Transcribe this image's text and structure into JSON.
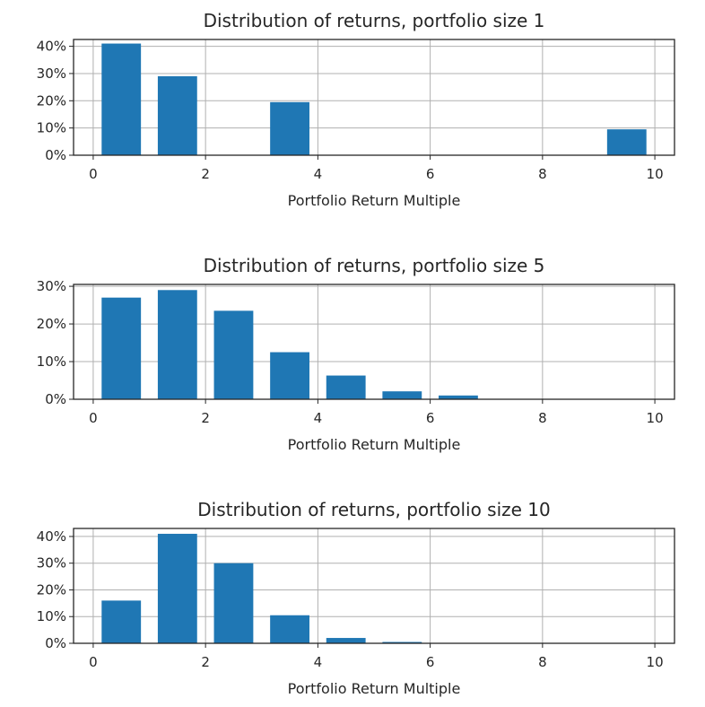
{
  "chart_data": [
    {
      "type": "bar",
      "title": "Distribution of returns, portfolio size 1",
      "xlabel": "Portfolio Return Multiple",
      "ylabel": "",
      "xlim": [
        -0.35,
        10.35
      ],
      "ylim": [
        0,
        42.5
      ],
      "xticks": [
        0,
        2,
        4,
        6,
        8,
        10
      ],
      "yticks": [
        0,
        10,
        20,
        30,
        40
      ],
      "ytick_labels": [
        "0%",
        "10%",
        "20%",
        "30%",
        "40%"
      ],
      "grid": true,
      "bar_color": "#1f77b4",
      "bars": [
        {
          "x0": 0.15,
          "x1": 0.85,
          "value": 41
        },
        {
          "x0": 1.15,
          "x1": 1.85,
          "value": 29
        },
        {
          "x0": 3.15,
          "x1": 3.85,
          "value": 19.5
        },
        {
          "x0": 9.15,
          "x1": 9.85,
          "value": 9.5
        }
      ]
    },
    {
      "type": "bar",
      "title": "Distribution of returns, portfolio size 5",
      "xlabel": "Portfolio Return Multiple",
      "ylabel": "",
      "xlim": [
        -0.35,
        10.35
      ],
      "ylim": [
        0,
        30.5
      ],
      "xticks": [
        0,
        2,
        4,
        6,
        8,
        10
      ],
      "yticks": [
        0,
        10,
        20,
        30
      ],
      "ytick_labels": [
        "0%",
        "10%",
        "20%",
        "30%"
      ],
      "grid": true,
      "bar_color": "#1f77b4",
      "bars": [
        {
          "x0": 0.15,
          "x1": 0.85,
          "value": 27
        },
        {
          "x0": 1.15,
          "x1": 1.85,
          "value": 29
        },
        {
          "x0": 2.15,
          "x1": 2.85,
          "value": 23.5
        },
        {
          "x0": 3.15,
          "x1": 3.85,
          "value": 12.5
        },
        {
          "x0": 4.15,
          "x1": 4.85,
          "value": 6.3
        },
        {
          "x0": 5.15,
          "x1": 5.85,
          "value": 2.1
        },
        {
          "x0": 6.15,
          "x1": 6.85,
          "value": 1.0
        }
      ]
    },
    {
      "type": "bar",
      "title": "Distribution of returns, portfolio size 10",
      "xlabel": "Portfolio Return Multiple",
      "ylabel": "",
      "xlim": [
        -0.35,
        10.35
      ],
      "ylim": [
        0,
        43
      ],
      "xticks": [
        0,
        2,
        4,
        6,
        8,
        10
      ],
      "yticks": [
        0,
        10,
        20,
        30,
        40
      ],
      "ytick_labels": [
        "0%",
        "10%",
        "20%",
        "30%",
        "40%"
      ],
      "grid": true,
      "bar_color": "#1f77b4",
      "bars": [
        {
          "x0": 0.15,
          "x1": 0.85,
          "value": 16
        },
        {
          "x0": 1.15,
          "x1": 1.85,
          "value": 41
        },
        {
          "x0": 2.15,
          "x1": 2.85,
          "value": 30
        },
        {
          "x0": 3.15,
          "x1": 3.85,
          "value": 10.5
        },
        {
          "x0": 4.15,
          "x1": 4.85,
          "value": 2.0
        },
        {
          "x0": 5.15,
          "x1": 5.85,
          "value": 0.5
        }
      ]
    }
  ]
}
